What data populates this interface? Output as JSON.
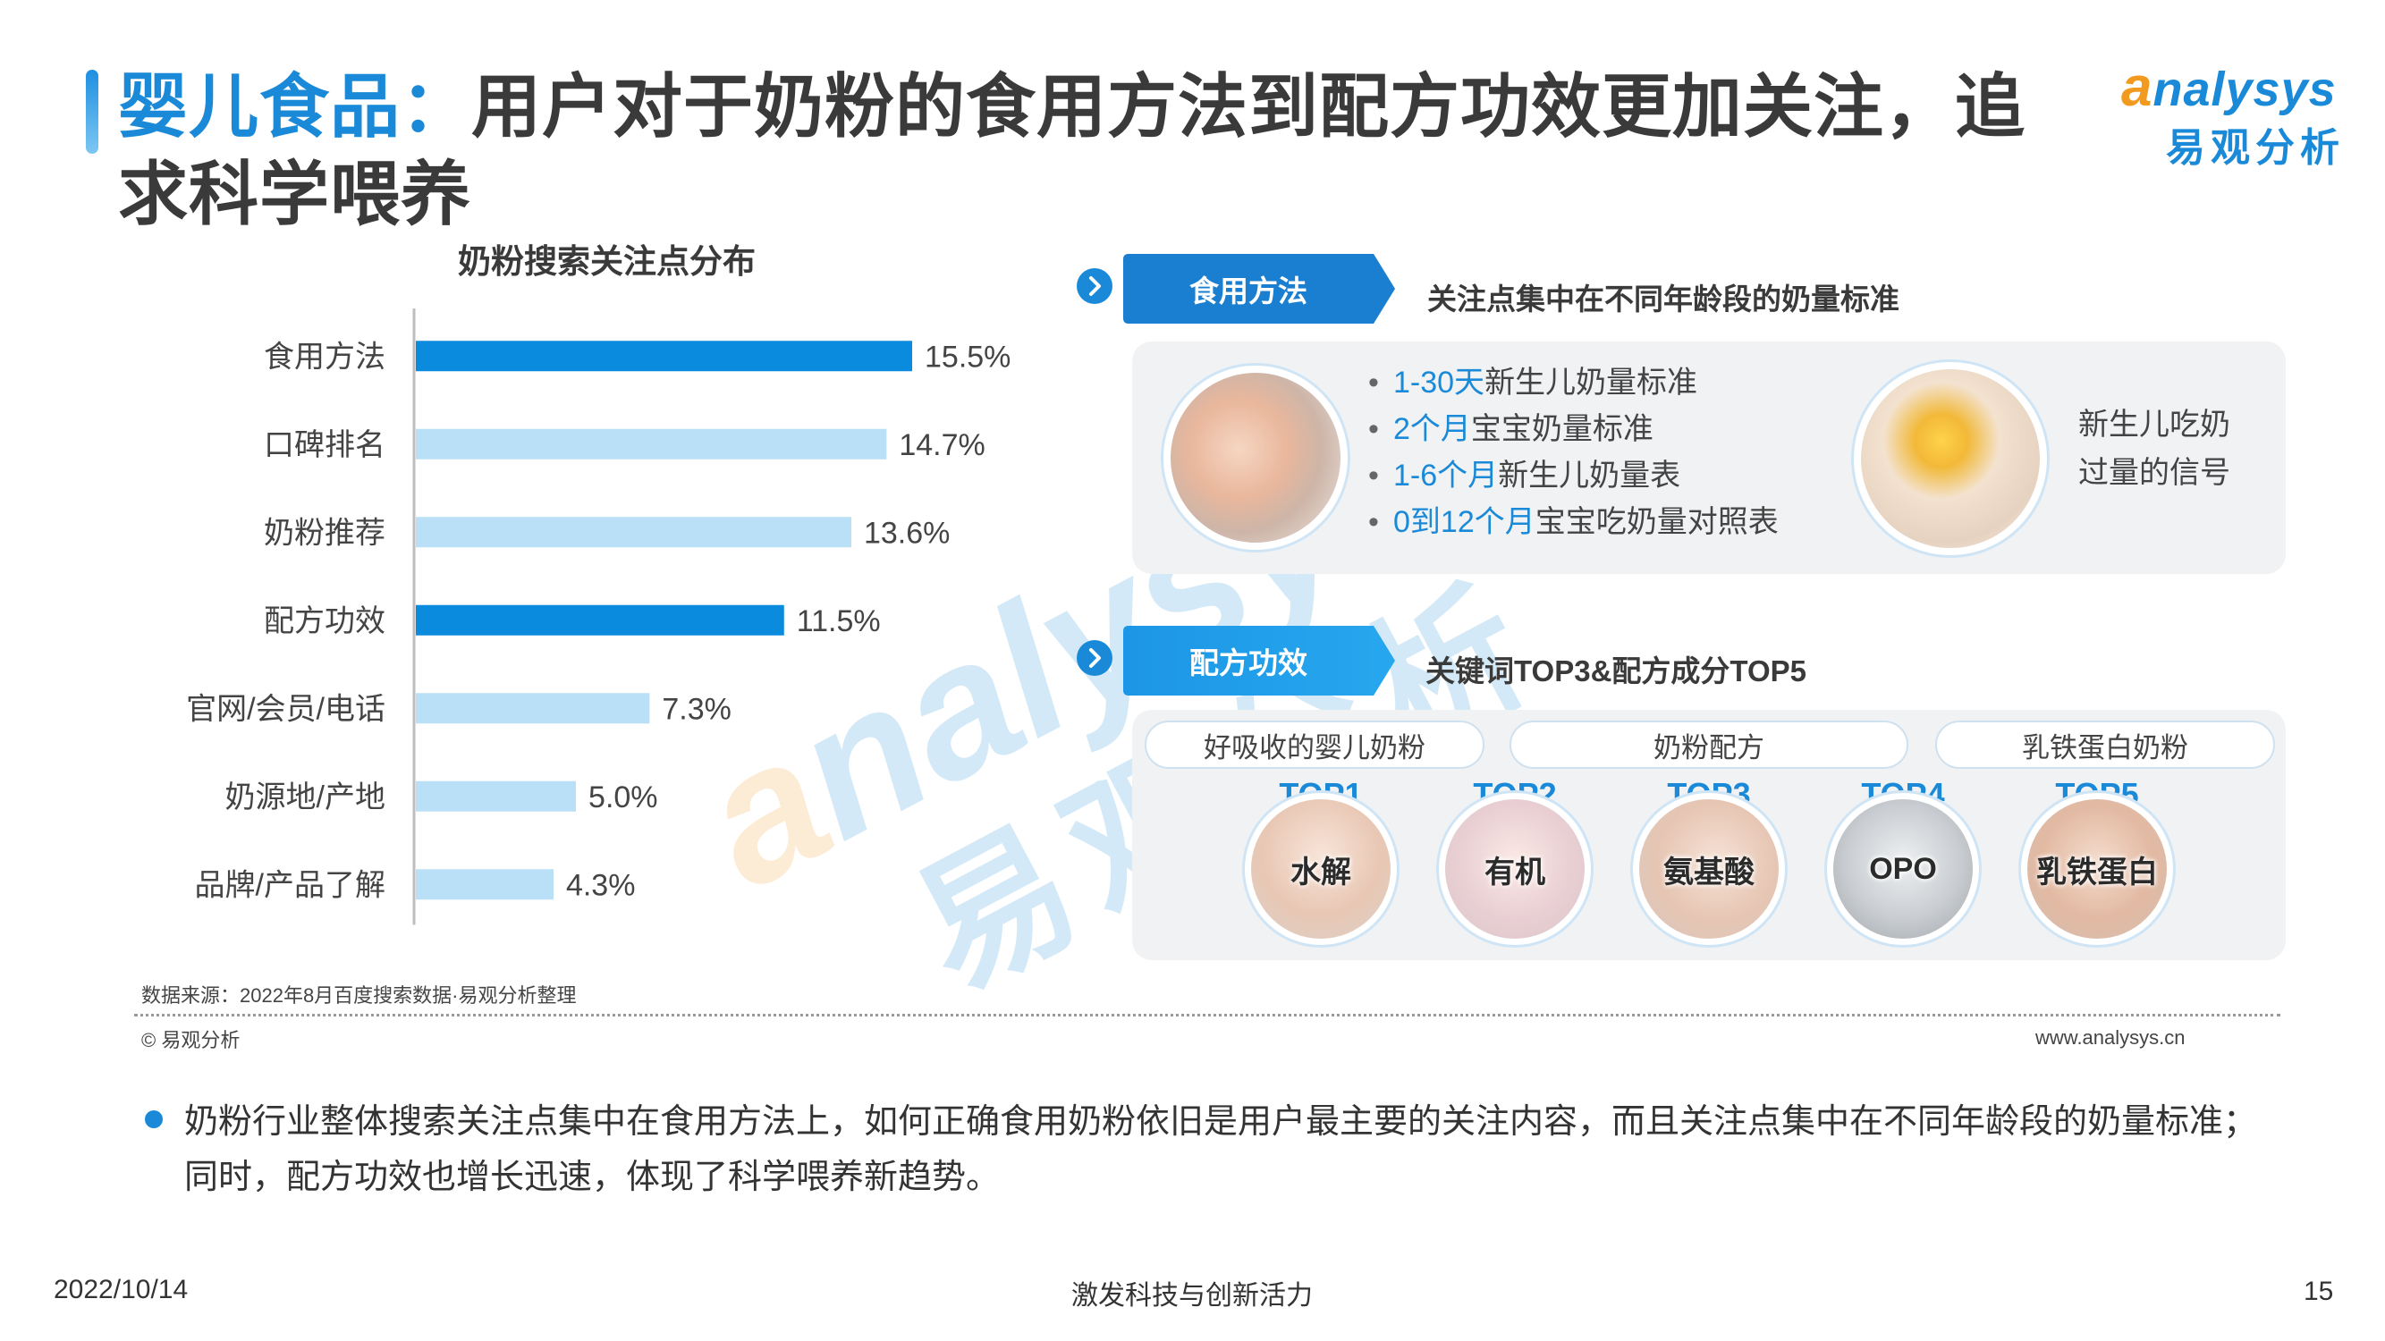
{
  "header": {
    "title_highlight": "婴儿食品：",
    "title_rest": "用户对于奶粉的食用方法到配方功效更加关注，追求科学喂养",
    "logo_en_o": "a",
    "logo_en_rest": "nalysys",
    "logo_cn": "易观分析"
  },
  "watermark": {
    "en_o": "a",
    "en_rest": "nalysys",
    "cn": "易观分析"
  },
  "chart_data": {
    "type": "bar",
    "orientation": "horizontal",
    "title": "奶粉搜索关注点分布",
    "categories": [
      "食用方法",
      "口碑排名",
      "奶粉推荐",
      "配方功效",
      "官网/会员/电话",
      "奶源地/产地",
      "品牌/产品了解"
    ],
    "values": [
      15.5,
      14.7,
      13.6,
      11.5,
      7.3,
      5.0,
      4.3
    ],
    "value_labels": [
      "15.5%",
      "14.7%",
      "13.6%",
      "11.5%",
      "7.3%",
      "5.0%",
      "4.3%"
    ],
    "highlighted": [
      true,
      false,
      false,
      true,
      false,
      false,
      false
    ],
    "colors": {
      "highlight": "#0b8bdd",
      "normal": "#b9e0f6"
    },
    "xlim": [
      0,
      16
    ],
    "grid": false,
    "legend": "none"
  },
  "section1": {
    "tag": "食用方法",
    "desc": "关注点集中在不同年龄段的奶量标准",
    "bullets": [
      {
        "blue": "1-30天",
        "rest": "新生儿奶量标准"
      },
      {
        "blue": "2个月",
        "rest": "宝宝奶量标准"
      },
      {
        "blue": "1-6个月",
        "rest": "新生儿奶量表"
      },
      {
        "blue": "0到12个月",
        "rest": "宝宝吃奶量对照表"
      }
    ],
    "side_note_line1": "新生儿吃奶",
    "side_note_line2": "过量的信号"
  },
  "section2": {
    "tag": "配方功效",
    "desc": "关键词TOP3&配方成分TOP5",
    "keywords": [
      "好吸收的婴儿奶粉",
      "奶粉配方",
      "乳铁蛋白奶粉"
    ],
    "ingredients": [
      {
        "rank": "TOP1",
        "name": "水解"
      },
      {
        "rank": "TOP2",
        "name": "有机"
      },
      {
        "rank": "TOP3",
        "name": "氨基酸"
      },
      {
        "rank": "TOP4",
        "name": "OPO"
      },
      {
        "rank": "TOP5",
        "name": "乳铁蛋白"
      }
    ]
  },
  "footer": {
    "source": "数据来源：2022年8月百度搜索数据·易观分析整理",
    "copyright": "© 易观分析",
    "site": "www.analysys.cn",
    "note": "奶粉行业整体搜索关注点集中在食用方法上，如何正确食用奶粉依旧是用户最主要的关注内容，而且关注点集中在不同年龄段的奶量标准；同时，配方功效也增长迅速，体现了科学喂养新趋势。",
    "date": "2022/10/14",
    "slogan": "激发科技与创新活力",
    "page": "15"
  },
  "colors": {
    "accent": "#1a8ad8",
    "orange": "#f29a1f",
    "panel": "#f1f2f4"
  }
}
